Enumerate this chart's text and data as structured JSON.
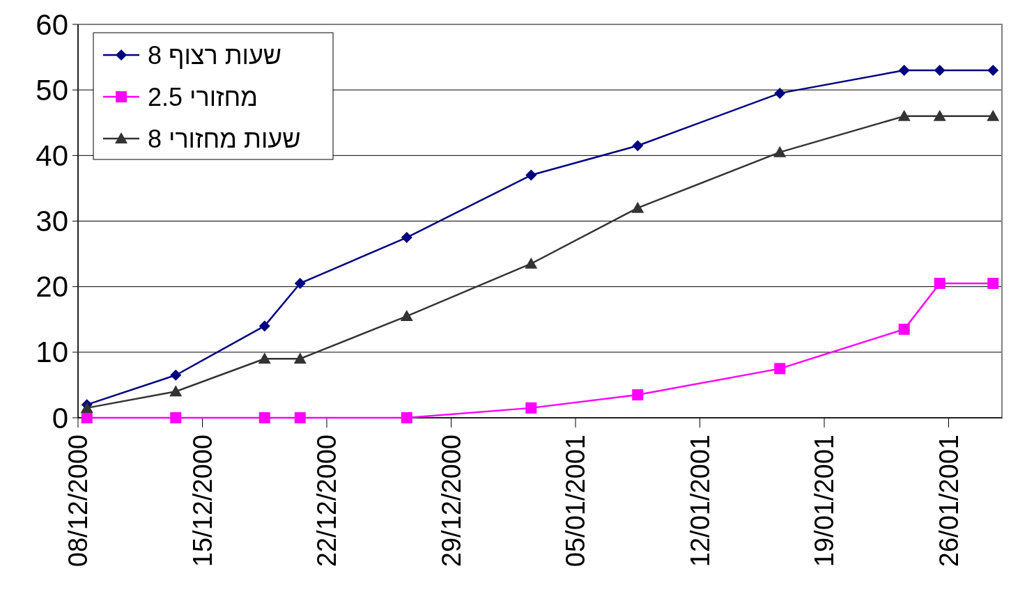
{
  "chart_data": {
    "type": "line",
    "x": [
      "2000-12-08T12:00",
      "2000-12-13T12:00",
      "2000-12-18T12:00",
      "2000-12-20T12:00",
      "2000-12-26T12:00",
      "2001-01-02T12:00",
      "2001-01-08T12:00",
      "2001-01-16T12:00",
      "2001-01-23T12:00",
      "2001-01-25T12:00",
      "2001-01-28T12:00"
    ],
    "series": [
      {
        "name": "שעות רצוף 8",
        "color": "#000080",
        "marker": "diamond",
        "values": [
          2,
          6.5,
          14,
          20.5,
          27.5,
          37,
          41.5,
          49.5,
          53,
          53,
          53
        ]
      },
      {
        "name": "מחזורי 2.5",
        "color": "#ff00ff",
        "marker": "square",
        "values": [
          0,
          0,
          0,
          0,
          0,
          1.5,
          3.5,
          7.5,
          13.5,
          20.5,
          20.5
        ]
      },
      {
        "name": "שעות מחזורי 8",
        "color": "#333333",
        "marker": "triangle",
        "values": [
          1.5,
          4,
          9,
          9,
          15.5,
          23.5,
          32,
          40.5,
          46,
          46,
          46
        ]
      }
    ],
    "xlim": [
      "2000-12-08",
      "2001-01-29"
    ],
    "xticks": [
      {
        "value": "2000-12-08",
        "label": "08/12/2000"
      },
      {
        "value": "2000-12-15",
        "label": "15/12/2000"
      },
      {
        "value": "2000-12-22",
        "label": "22/12/2000"
      },
      {
        "value": "2000-12-29",
        "label": "29/12/2000"
      },
      {
        "value": "2001-01-05",
        "label": "05/01/2001"
      },
      {
        "value": "2001-01-12",
        "label": "12/01/2001"
      },
      {
        "value": "2001-01-19",
        "label": "19/01/2001"
      },
      {
        "value": "2001-01-26",
        "label": "26/01/2001"
      }
    ],
    "ylim": [
      0,
      60
    ],
    "yticks": [
      0,
      10,
      20,
      30,
      40,
      50,
      60
    ],
    "grid": "y",
    "legend": "top left",
    "line_style": "solid"
  }
}
